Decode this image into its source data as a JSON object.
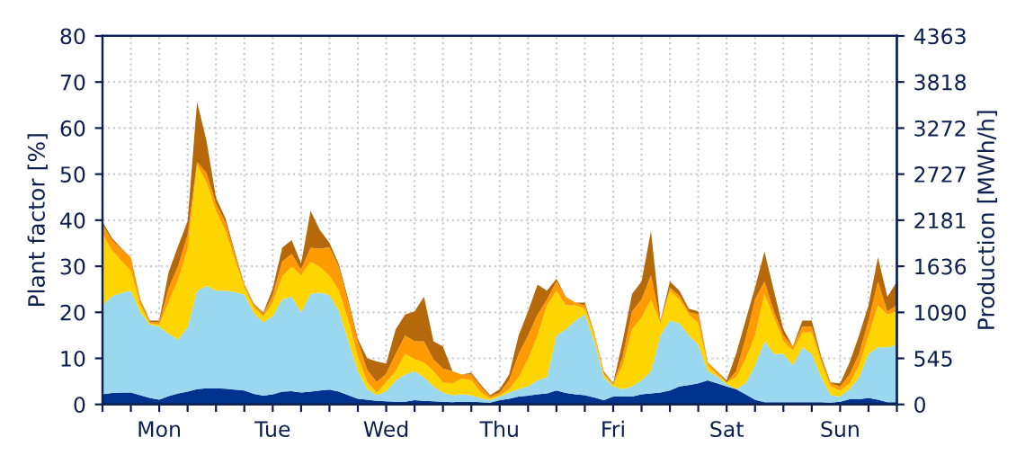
{
  "chart_data": {
    "type": "area",
    "stacked": true,
    "ylabel": "Plant factor [%]",
    "y2label": "Production [MWh/h]",
    "categories": [
      null,
      null,
      null,
      null,
      null,
      null,
      "Mon",
      null,
      null,
      null,
      null,
      null,
      null,
      null,
      null,
      null,
      null,
      null,
      "Tue",
      null,
      null,
      null,
      null,
      null,
      null,
      null,
      null,
      null,
      null,
      null,
      "Wed",
      null,
      null,
      null,
      null,
      null,
      null,
      null,
      null,
      null,
      null,
      null,
      "Thu",
      null,
      null,
      null,
      null,
      null,
      null,
      null,
      null,
      null,
      null,
      null,
      "Fri",
      null,
      null,
      null,
      null,
      null,
      null,
      null,
      null,
      null,
      null,
      null,
      "Sat",
      null,
      null,
      null,
      null,
      null,
      null,
      null,
      null,
      null,
      null,
      null,
      "Sun",
      null,
      null,
      null,
      null,
      null,
      null
    ],
    "series": [
      {
        "color": "#00338d",
        "values": [
          2.2,
          2.5,
          2.6,
          2.6,
          2,
          1.4,
          1,
          1.8,
          2.4,
          2.8,
          3.3,
          3.5,
          3.5,
          3.4,
          3.2,
          3,
          2.3,
          1.9,
          2.2,
          2.8,
          2.9,
          2.6,
          2.8,
          3,
          3.2,
          2.8,
          2,
          1.2,
          1,
          0.8,
          0.7,
          0.6,
          0.6,
          0.9,
          0.8,
          0.7,
          0.6,
          0.5,
          0.6,
          0.6,
          0.5,
          0.4,
          0.9,
          1.2,
          1.7,
          1.9,
          2.2,
          2.4,
          3,
          2.5,
          2.2,
          2,
          1.5,
          0.9,
          1.7,
          1.7,
          1.7,
          2.2,
          2.4,
          2.6,
          3,
          3.9,
          4.2,
          4.6,
          5.2,
          4.6,
          3.9,
          3.3,
          2.2,
          1,
          0.5,
          0.5,
          0.5,
          0.5,
          0.5,
          0.5,
          0.5,
          0.4,
          0.6,
          1.1,
          1.1,
          1.4,
          1,
          0.5,
          0.5
        ]
      },
      {
        "color": "#9ad8f0",
        "values": [
          19.3,
          21,
          21.6,
          22.1,
          18,
          15.9,
          15.9,
          13.5,
          11.7,
          14,
          21.4,
          22.2,
          21.2,
          21.3,
          21.2,
          20.8,
          17.5,
          15.9,
          17,
          20,
          20.5,
          17.4,
          21.2,
          21.3,
          20.5,
          17.5,
          11.7,
          6,
          2.3,
          1.2,
          2.2,
          4.6,
          5.9,
          6.3,
          5.1,
          3.2,
          2,
          1.5,
          1.6,
          1.4,
          0.8,
          0.5,
          0.8,
          1.4,
          1.6,
          2,
          3,
          3.5,
          12,
          13.8,
          16,
          17.5,
          12.2,
          5,
          2.2,
          1.6,
          2.2,
          3,
          4.8,
          12.4,
          15.2,
          13.7,
          10.8,
          8.4,
          2,
          1.5,
          0.5,
          0,
          2.4,
          7.5,
          13.2,
          10.5,
          10.5,
          8,
          11.9,
          10.5,
          5.4,
          1.6,
          1.1,
          2.2,
          4.8,
          9.6,
          11.4,
          11.9,
          12.5
        ]
      },
      {
        "color": "#ffd500",
        "values": [
          15.5,
          10,
          7,
          4.3,
          1.5,
          0.3,
          0.4,
          7,
          13,
          17,
          27.3,
          22.5,
          17.3,
          13,
          7,
          1.6,
          1.3,
          1.3,
          3,
          5,
          6.5,
          8,
          7,
          5.5,
          4.2,
          4.5,
          4.5,
          3.2,
          1.6,
          0.6,
          2,
          2,
          4.5,
          2.6,
          3.2,
          3.3,
          2.2,
          2.6,
          3.4,
          3.2,
          1.3,
          0.4,
          0.3,
          0.7,
          2.6,
          5.9,
          9.8,
          15.6,
          9.7,
          5.2,
          3.3,
          1.3,
          1.3,
          0.6,
          0.3,
          5.2,
          12.4,
          13.7,
          15.6,
          2.6,
          6.5,
          5.2,
          4.5,
          4.6,
          1.3,
          0.4,
          0.4,
          2.6,
          5.2,
          6.5,
          10.3,
          7.9,
          2.7,
          3.2,
          3.2,
          4.6,
          3.2,
          1.9,
          1.3,
          1.3,
          2.6,
          4,
          9.1,
          7.1,
          7.2
        ]
      },
      {
        "color": "#ff9a00",
        "values": [
          2,
          2.2,
          2.5,
          2.9,
          1,
          0.3,
          0.5,
          3,
          3,
          3,
          0.7,
          2,
          1.6,
          1.8,
          1.2,
          0.5,
          0.6,
          0.5,
          1.5,
          3.2,
          2.8,
          1.3,
          3,
          4,
          6.2,
          5,
          3.9,
          3.2,
          2.6,
          2.3,
          1.8,
          3.8,
          4,
          3.9,
          4.6,
          2.6,
          3,
          2.6,
          0.9,
          1.3,
          1.3,
          0.4,
          0.6,
          1.9,
          5.1,
          5.2,
          4.5,
          1.3,
          2,
          1.9,
          0.6,
          0.7,
          0.6,
          0.5,
          0.2,
          1.9,
          3.9,
          3.9,
          5.2,
          0.4,
          0.7,
          0.8,
          0.6,
          1.9,
          0.6,
          0.7,
          0,
          1.3,
          4.5,
          7.8,
          2.7,
          1.3,
          1.3,
          0.9,
          1.3,
          1.3,
          0.7,
          0.7,
          0.9,
          1.9,
          2.5,
          3.2,
          5.2,
          0.7,
          1.3
        ]
      },
      {
        "color": "#b5690a",
        "values": [
          0.7,
          0.4,
          0.2,
          0,
          0.3,
          0.3,
          0.4,
          3.5,
          4.3,
          3,
          13,
          7,
          1.3,
          0.9,
          0.5,
          0.2,
          0.2,
          0.3,
          1.5,
          3,
          3,
          1.3,
          8,
          4,
          1,
          0.6,
          0.6,
          0.6,
          2.5,
          4.4,
          2.2,
          5.3,
          4.5,
          6.5,
          9.7,
          3.9,
          4.8,
          0,
          0,
          0.4,
          0.4,
          0.3,
          0.7,
          1.3,
          4,
          5.2,
          6.5,
          1.9,
          0.6,
          0,
          0,
          0.6,
          0,
          0.2,
          0.2,
          3.3,
          3.8,
          3.9,
          9.7,
          0.2,
          1.3,
          1.1,
          0.7,
          0.7,
          0,
          0,
          0.4,
          3.8,
          3.9,
          2.6,
          6.5,
          4.5,
          1.3,
          0,
          1.3,
          1.3,
          0.6,
          0.2,
          0.7,
          2.6,
          4,
          3.3,
          5.2,
          3.2,
          5.2
        ]
      }
    ],
    "ylim": [
      0,
      80
    ],
    "yticks": [
      0,
      10,
      20,
      30,
      40,
      50,
      60,
      70,
      80
    ],
    "y2lim": [
      0,
      4363
    ],
    "y2ticks": [
      0,
      545,
      1090,
      1636,
      2181,
      2727,
      3272,
      3818,
      4363
    ],
    "grid": true
  }
}
